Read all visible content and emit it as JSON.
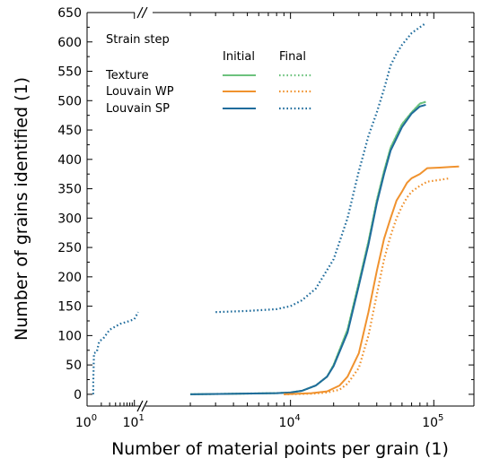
{
  "chart_data": {
    "type": "line",
    "xlabel": "Number of material points per grain (1)",
    "ylabel": "Number of grains identified (1)",
    "xscale": "log-broken",
    "ylim": [
      -20,
      650
    ],
    "yticks": [
      0,
      50,
      100,
      150,
      200,
      250,
      300,
      350,
      400,
      450,
      500,
      550,
      600,
      650
    ],
    "xticks_left": [
      {
        "mant": "10",
        "exp": "0",
        "value": 1
      },
      {
        "mant": "10",
        "exp": "1",
        "value": 10
      }
    ],
    "xticks_right": [
      {
        "mant": "10",
        "exp": "4",
        "value": 10000
      },
      {
        "mant": "10",
        "exp": "5",
        "value": 100000
      }
    ],
    "legend": {
      "title": "Strain step",
      "col_initial": "Initial",
      "col_final": "Final",
      "rows": [
        "Texture",
        "Louvain WP",
        "Louvain SP"
      ]
    },
    "series": [
      {
        "name": "Texture",
        "step": "Initial",
        "color": "#6cc27d",
        "dash": "solid",
        "points": [
          [
            2000,
            0
          ],
          [
            8000,
            2
          ],
          [
            10000,
            3
          ],
          [
            12000,
            6
          ],
          [
            15000,
            15
          ],
          [
            18000,
            30
          ],
          [
            20000,
            50
          ],
          [
            25000,
            110
          ],
          [
            30000,
            190
          ],
          [
            35000,
            260
          ],
          [
            40000,
            330
          ],
          [
            45000,
            380
          ],
          [
            50000,
            420
          ],
          [
            60000,
            460
          ],
          [
            70000,
            480
          ],
          [
            80000,
            495
          ],
          [
            88000,
            498
          ]
        ]
      },
      {
        "name": "Texture",
        "step": "Final",
        "color": "#6cc27d",
        "dash": "dot",
        "points": [
          [
            2000,
            0
          ],
          [
            8000,
            2
          ],
          [
            10000,
            3
          ],
          [
            12000,
            6
          ],
          [
            15000,
            15
          ],
          [
            18000,
            30
          ],
          [
            20000,
            50
          ],
          [
            25000,
            110
          ],
          [
            30000,
            190
          ],
          [
            35000,
            260
          ],
          [
            40000,
            330
          ],
          [
            45000,
            380
          ],
          [
            50000,
            420
          ],
          [
            60000,
            460
          ],
          [
            70000,
            480
          ],
          [
            80000,
            495
          ],
          [
            88000,
            498
          ]
        ]
      },
      {
        "name": "Louvain SP",
        "step": "Initial",
        "color": "#1f6c9c",
        "dash": "solid",
        "points": [
          [
            2000,
            0
          ],
          [
            8000,
            2
          ],
          [
            10000,
            3
          ],
          [
            12000,
            6
          ],
          [
            15000,
            15
          ],
          [
            18000,
            30
          ],
          [
            20000,
            48
          ],
          [
            25000,
            105
          ],
          [
            30000,
            185
          ],
          [
            35000,
            255
          ],
          [
            40000,
            325
          ],
          [
            45000,
            375
          ],
          [
            50000,
            415
          ],
          [
            60000,
            455
          ],
          [
            70000,
            478
          ],
          [
            80000,
            490
          ],
          [
            88000,
            493
          ]
        ]
      },
      {
        "name": "Louvain WP",
        "step": "Initial",
        "color": "#f0922e",
        "dash": "solid",
        "points": [
          [
            9000,
            0
          ],
          [
            14000,
            2
          ],
          [
            18000,
            5
          ],
          [
            22000,
            15
          ],
          [
            25000,
            30
          ],
          [
            30000,
            70
          ],
          [
            35000,
            140
          ],
          [
            40000,
            210
          ],
          [
            45000,
            265
          ],
          [
            50000,
            300
          ],
          [
            55000,
            330
          ],
          [
            60000,
            345
          ],
          [
            65000,
            360
          ],
          [
            70000,
            368
          ],
          [
            80000,
            375
          ],
          [
            90000,
            385
          ],
          [
            110000,
            386
          ],
          [
            130000,
            387
          ],
          [
            150000,
            388
          ]
        ]
      },
      {
        "name": "Louvain WP",
        "step": "Final",
        "color": "#f0922e",
        "dash": "dot",
        "points": [
          [
            9000,
            0
          ],
          [
            14000,
            1
          ],
          [
            18000,
            3
          ],
          [
            22000,
            8
          ],
          [
            25000,
            18
          ],
          [
            30000,
            45
          ],
          [
            35000,
            100
          ],
          [
            40000,
            170
          ],
          [
            45000,
            230
          ],
          [
            50000,
            270
          ],
          [
            55000,
            300
          ],
          [
            60000,
            320
          ],
          [
            65000,
            335
          ],
          [
            70000,
            345
          ],
          [
            80000,
            355
          ],
          [
            90000,
            362
          ],
          [
            110000,
            365
          ],
          [
            130000,
            368
          ]
        ]
      },
      {
        "name": "Louvain SP",
        "step": "Final",
        "color": "#1f6c9c",
        "dash": "dot",
        "points": [
          [
            1.35,
            0
          ],
          [
            1.35,
            20
          ],
          [
            1.4,
            70
          ],
          [
            1.6,
            72
          ],
          [
            1.8,
            90
          ],
          [
            2.2,
            95
          ],
          [
            3,
            110
          ],
          [
            5,
            120
          ],
          [
            8,
            125
          ],
          [
            10,
            128
          ],
          [
            12,
            140
          ],
          [
            3000,
            140
          ],
          [
            5000,
            142
          ],
          [
            8000,
            145
          ],
          [
            10000,
            150
          ],
          [
            12000,
            160
          ],
          [
            15000,
            180
          ],
          [
            20000,
            230
          ],
          [
            25000,
            300
          ],
          [
            30000,
            380
          ],
          [
            35000,
            440
          ],
          [
            40000,
            480
          ],
          [
            45000,
            520
          ],
          [
            50000,
            560
          ],
          [
            55000,
            580
          ],
          [
            60000,
            595
          ],
          [
            70000,
            615
          ],
          [
            80000,
            625
          ],
          [
            88000,
            632
          ]
        ]
      }
    ]
  }
}
